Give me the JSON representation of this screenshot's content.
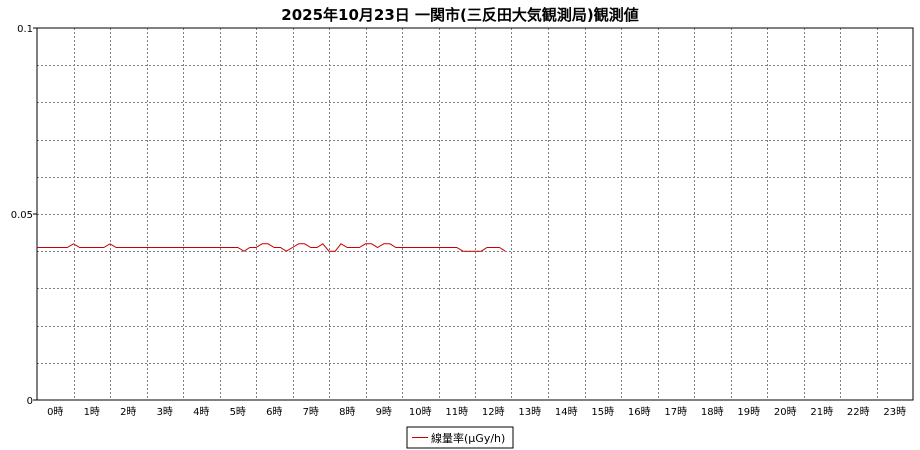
{
  "chart_data": {
    "type": "line",
    "title": "2025年10月23日 一関市(三反田大気観測局)観測値",
    "ylim": [
      0,
      0.1
    ],
    "y_ticks": [
      "0",
      "0.05",
      "0.1"
    ],
    "x_ticks": [
      "0時",
      "1時",
      "2時",
      "3時",
      "4時",
      "5時",
      "6時",
      "7時",
      "8時",
      "9時",
      "10時",
      "11時",
      "12時",
      "13時",
      "14時",
      "15時",
      "16時",
      "17時",
      "18時",
      "19時",
      "20時",
      "21時",
      "22時",
      "23時"
    ],
    "xlim": [
      -0.5,
      23.5
    ],
    "grid": true,
    "legend_position": "bottom-center",
    "series": [
      {
        "name": "線量率(μGy/h)",
        "color": "#cc0000",
        "x": [
          -0.5,
          0.33,
          0.5,
          0.67,
          1.0,
          1.33,
          1.5,
          1.67,
          2.0,
          2.33,
          3.0,
          4.0,
          5.0,
          5.17,
          5.33,
          5.5,
          5.67,
          5.83,
          6.0,
          6.17,
          6.33,
          6.5,
          6.67,
          6.83,
          7.0,
          7.17,
          7.33,
          7.5,
          7.67,
          7.83,
          8.0,
          8.17,
          8.33,
          8.5,
          8.67,
          8.83,
          9.0,
          9.17,
          9.33,
          9.5,
          9.67,
          9.83,
          10.0,
          10.33,
          10.67,
          11.0,
          11.17,
          11.33,
          11.5,
          11.67,
          11.83,
          12.0,
          12.17,
          12.33
        ],
        "y": [
          0.041,
          0.041,
          0.042,
          0.041,
          0.041,
          0.041,
          0.042,
          0.041,
          0.041,
          0.041,
          0.041,
          0.041,
          0.041,
          0.04,
          0.041,
          0.041,
          0.042,
          0.042,
          0.041,
          0.041,
          0.04,
          0.041,
          0.042,
          0.042,
          0.041,
          0.041,
          0.042,
          0.04,
          0.04,
          0.042,
          0.041,
          0.041,
          0.041,
          0.042,
          0.042,
          0.041,
          0.042,
          0.042,
          0.041,
          0.041,
          0.041,
          0.041,
          0.041,
          0.041,
          0.041,
          0.041,
          0.04,
          0.04,
          0.04,
          0.04,
          0.041,
          0.041,
          0.041,
          0.04
        ]
      }
    ]
  }
}
